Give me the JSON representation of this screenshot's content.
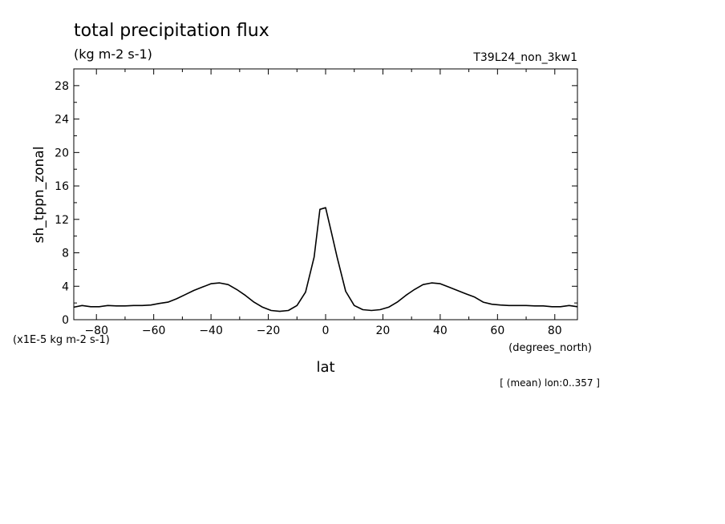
{
  "chart_data": {
    "type": "line",
    "title": "total precipitation flux",
    "subtitle": "(kg m-2 s-1)",
    "run_label": "T39L24_non_3kw1",
    "ylabel": "sh_tppn_zonal",
    "yunits": "(x1E-5 kg m-2 s-1)",
    "xlabel": "lat",
    "xunits": "(degrees_north)",
    "footnote": "[ (mean) lon:0..357 ]",
    "xlim": [
      -87.9,
      87.9
    ],
    "ylim": [
      0,
      30
    ],
    "x_ticks": [
      -80,
      -60,
      -40,
      -20,
      0,
      20,
      40,
      60,
      80
    ],
    "y_ticks": [
      0,
      4,
      8,
      12,
      16,
      20,
      24,
      28
    ],
    "grid": false,
    "line_color": "#000000",
    "series": [
      {
        "x": [
          -87.9,
          -85,
          -82,
          -79,
          -76,
          -73,
          -70,
          -67,
          -64,
          -61,
          -58,
          -55,
          -52,
          -49,
          -46,
          -43,
          -40,
          -37,
          -34,
          -31,
          -28,
          -25,
          -22,
          -19,
          -16,
          -13,
          -10,
          -7,
          -4,
          -2,
          0,
          2,
          4,
          7,
          10,
          13,
          16,
          19,
          22,
          25,
          28,
          31,
          34,
          37,
          40,
          43,
          46,
          49,
          52,
          55,
          58,
          61,
          64,
          67,
          70,
          73,
          76,
          79,
          82,
          85,
          87.9
        ],
        "y": [
          1.5,
          1.7,
          1.55,
          1.55,
          1.7,
          1.65,
          1.65,
          1.7,
          1.7,
          1.75,
          1.95,
          2.1,
          2.5,
          3.0,
          3.5,
          3.9,
          4.3,
          4.4,
          4.2,
          3.6,
          2.9,
          2.1,
          1.5,
          1.1,
          1.0,
          1.1,
          1.7,
          3.3,
          7.5,
          13.2,
          13.4,
          10.5,
          7.5,
          3.4,
          1.7,
          1.2,
          1.1,
          1.2,
          1.5,
          2.1,
          2.9,
          3.6,
          4.2,
          4.4,
          4.3,
          3.9,
          3.5,
          3.1,
          2.7,
          2.1,
          1.85,
          1.75,
          1.7,
          1.7,
          1.7,
          1.65,
          1.65,
          1.55,
          1.55,
          1.7,
          1.55
        ]
      }
    ]
  }
}
